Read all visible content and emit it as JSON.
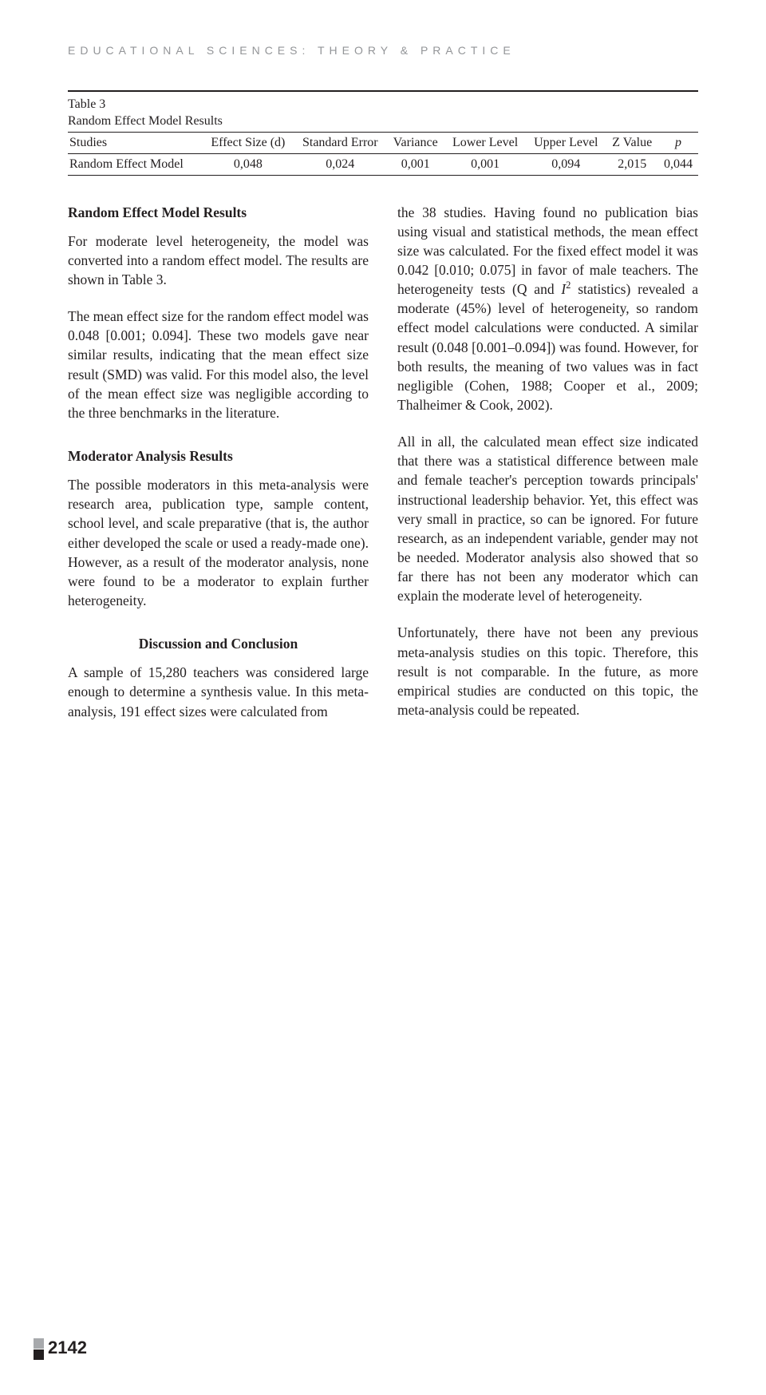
{
  "runningHead": "EDUCATIONAL SCIENCES: THEORY & PRACTICE",
  "table": {
    "label": "Table 3",
    "title": "Random Effect Model Results",
    "columns": [
      "Studies",
      "Effect Size (d)",
      "Standard Error",
      "Variance",
      "Lower Level",
      "Upper Level",
      "Z Value",
      "p"
    ],
    "row": {
      "label": "Random Effect Model",
      "values": [
        "0,048",
        "0,024",
        "0,001",
        "0,001",
        "0,094",
        "2,015",
        "0,044"
      ]
    }
  },
  "left": {
    "h1": "Random Effect Model Results",
    "p1": "For moderate level heterogeneity, the model was converted into a random effect model. The results are shown in Table 3.",
    "p2": "The mean effect size for the random effect model was 0.048 [0.001; 0.094]. These two models gave near similar results, indicating that the mean effect size result (SMD) was valid. For this model also, the level of the mean effect size was negligible according to the three benchmarks in the literature.",
    "h2": "Moderator Analysis Results",
    "p3": "The possible moderators in this meta-analysis were research area, publication type, sample content, school level, and scale preparative (that is, the author either developed the scale or used a ready-made one). However, as a result of the moderator analysis, none were found to be a moderator to explain further heterogeneity.",
    "h3": "Discussion and Conclusion",
    "p4": "A sample of 15,280 teachers was considered large enough to determine a synthesis value. In this meta-analysis, 191 effect sizes were calculated from"
  },
  "right": {
    "p1a": "the 38 studies. Having found no publication bias using visual and statistical methods, the mean effect size was calculated. For the fixed effect model it was 0.042 [0.010; 0.075] in favor of male teachers. The heterogeneity tests (Q and ",
    "p1b": "I",
    "p1c": " statistics) revealed a moderate (45%) level of heterogeneity, so random effect model calculations were conducted. A similar result (0.048 [0.001–0.094]) was found. However, for both results, the meaning of two values was in fact negligible (Cohen, 1988; Cooper et al., 2009; Thalheimer & Cook, 2002).",
    "p2": "All in all, the calculated mean effect size indicated that there was a statistical difference between male and female teacher's perception towards principals' instructional leadership behavior. Yet, this effect was very small in practice, so can be ignored. For future research, as an independent variable, gender may not be needed. Moderator analysis also showed that so far there has not been any moderator which can explain the moderate level of heterogeneity.",
    "p3": "Unfortunately, there have not been any previous meta-analysis studies on this topic. Therefore, this result is not comparable. In the future, as more empirical studies are conducted on this topic, the meta-analysis could be repeated."
  },
  "pageNumber": "2142"
}
